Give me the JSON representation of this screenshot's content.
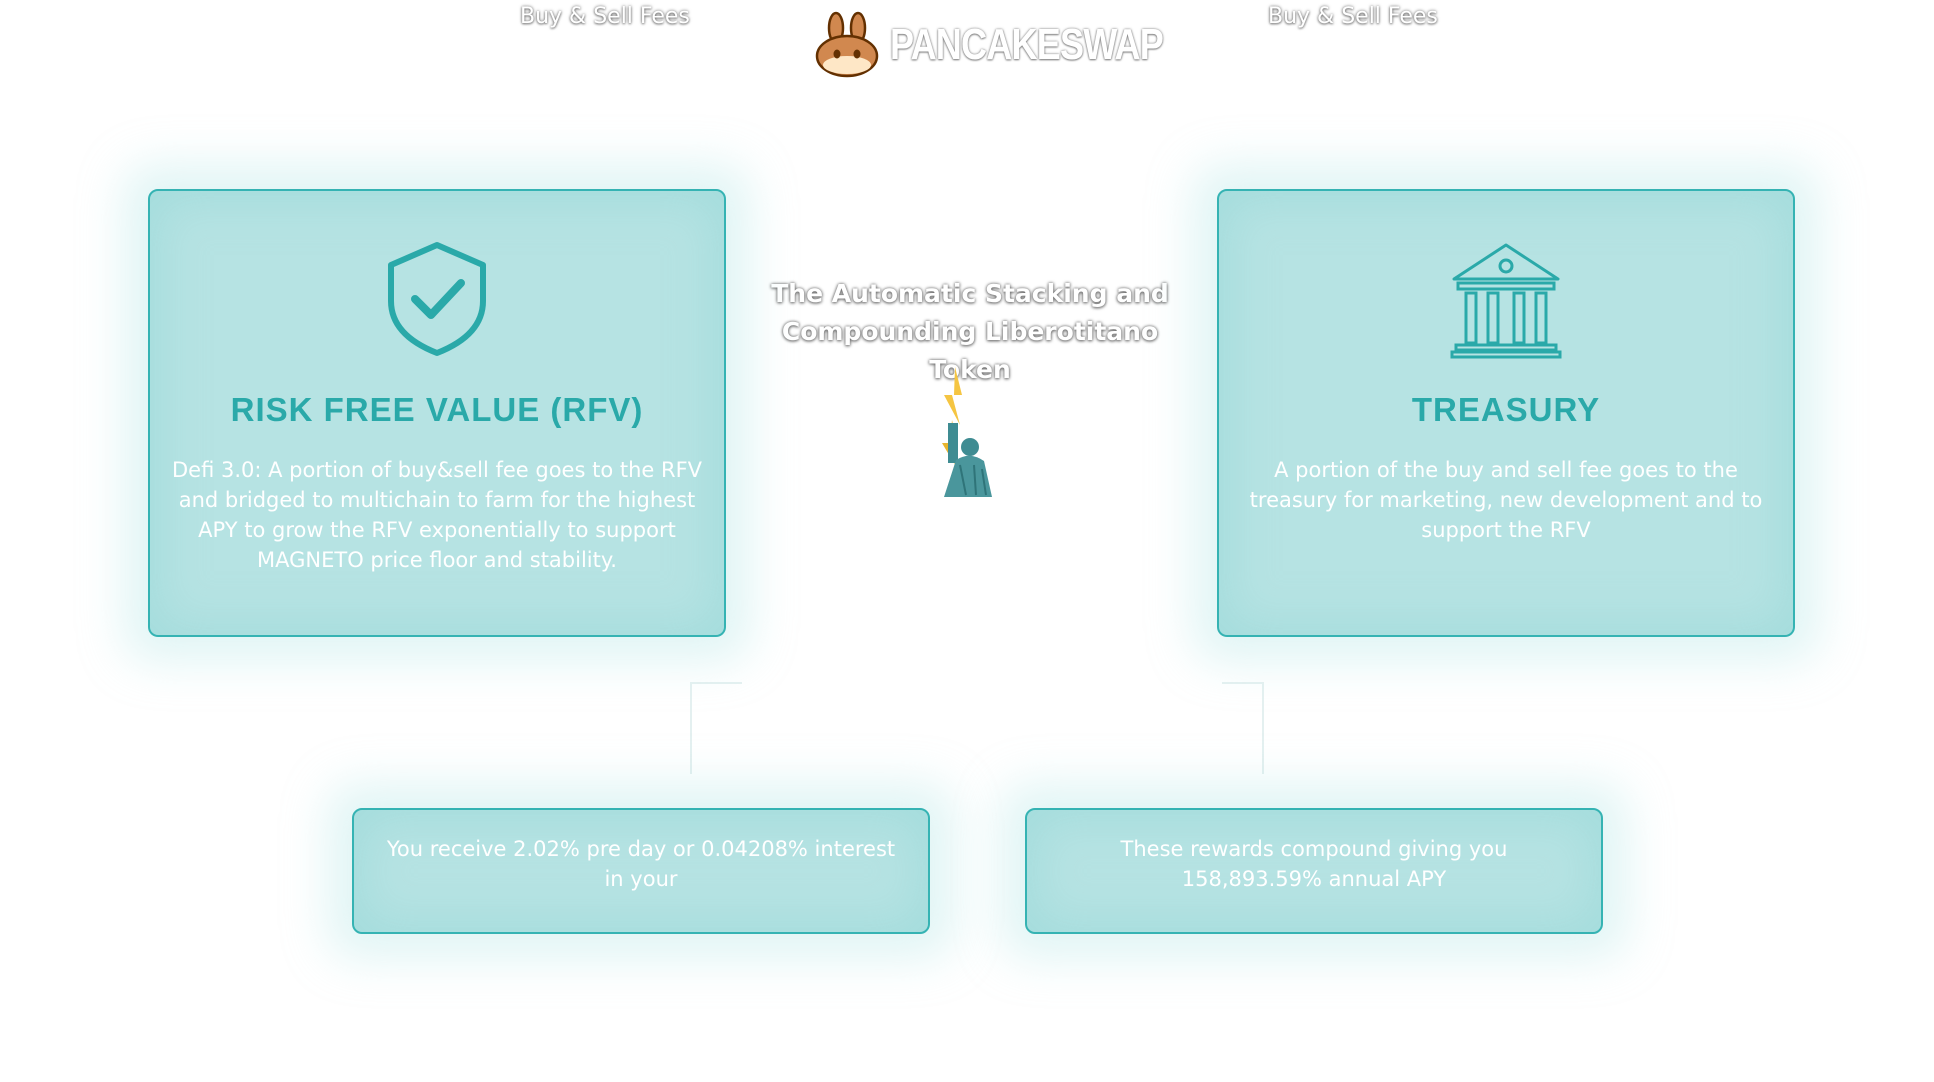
{
  "header": {
    "left_fee": "Buy & Sell Fees",
    "right_fee": "Buy & Sell Fees",
    "brand": "PANCAKESWAP",
    "brand_icon": "bunny-logo-icon"
  },
  "center": {
    "title": "The Automatic Stacking and Compounding Liberotitano Token",
    "image_icon": "liberty-statue-icon"
  },
  "cards": {
    "rfv": {
      "icon": "shield-check-icon",
      "title": "RISK FREE VALUE (RFV)",
      "text": "Defi 3.0: A portion of buy&sell fee goes to the RFV and bridged to multichain to farm for the highest APY to grow the RFV exponentially to support MAGNETO price floor and stability."
    },
    "treasury": {
      "icon": "bank-icon",
      "title": "TREASURY",
      "text": "A portion of the buy and sell fee goes to the treasury for marketing, new development and to support the RFV"
    }
  },
  "rewards": {
    "daily": "You receive 2.02% pre day or 0.04208% interest in your",
    "apy": "These rewards compound giving you 158,893.59% annual APY"
  },
  "colors": {
    "accent": "#2aa9a9",
    "card_fill": "#b2e1e1",
    "card_border": "#35b3b3"
  }
}
